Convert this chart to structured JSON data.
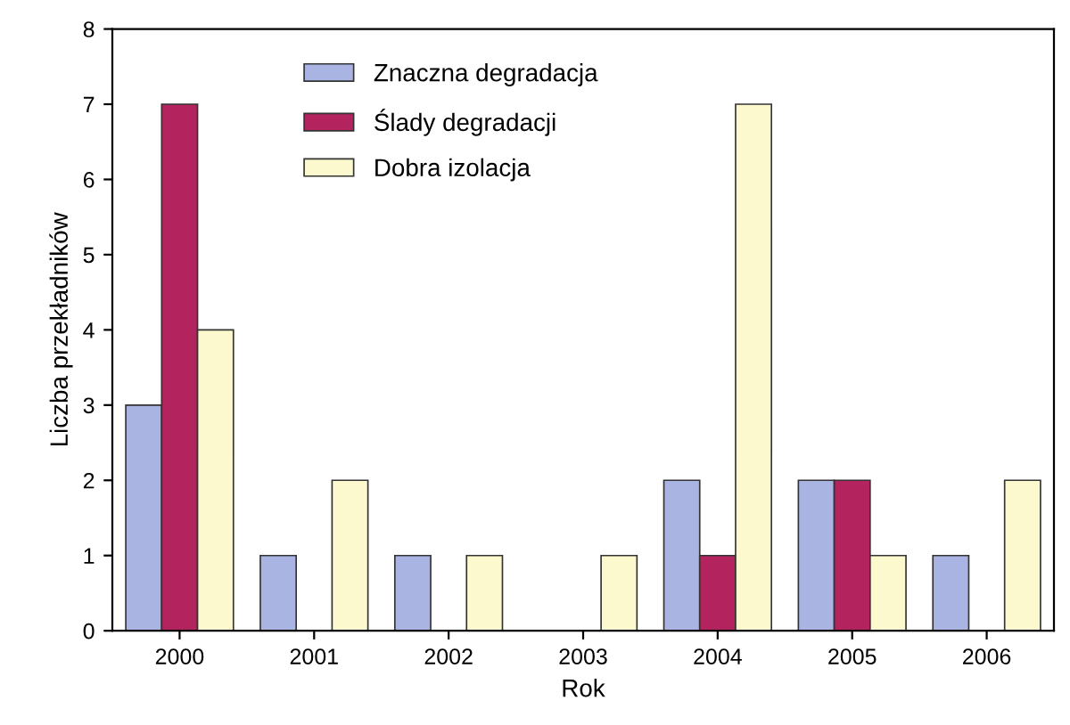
{
  "chart_data": {
    "type": "bar",
    "xlabel": "Rok",
    "ylabel": "Liczba przekładników",
    "categories": [
      "2000",
      "2001",
      "2002",
      "2003",
      "2004",
      "2005",
      "2006"
    ],
    "series": [
      {
        "name": "Znaczna degradacja",
        "color": "#a9b4e2",
        "values": [
          3,
          1,
          1,
          0,
          2,
          2,
          1
        ]
      },
      {
        "name": "Ślady degradacji",
        "color": "#b3245e",
        "values": [
          7,
          0,
          0,
          0,
          1,
          2,
          0
        ]
      },
      {
        "name": "Dobra izolacja",
        "color": "#fdf9cf",
        "values": [
          4,
          2,
          1,
          1,
          7,
          1,
          2
        ]
      }
    ],
    "ylim": [
      0,
      8
    ],
    "yticks": [
      0,
      1,
      2,
      3,
      4,
      5,
      6,
      7,
      8
    ],
    "grid": false,
    "legend": "top left"
  }
}
